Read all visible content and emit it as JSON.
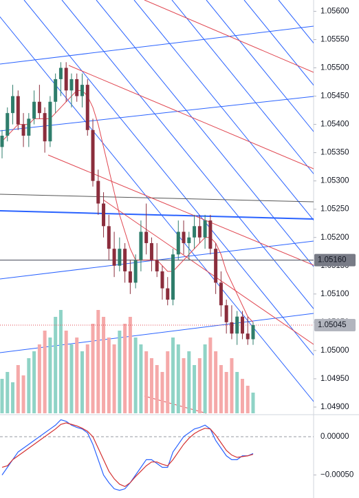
{
  "chart_data": {
    "type": "candlestick",
    "ylim": [
      1.04889,
      1.0562
    ],
    "yticks": [
      {
        "value": 1.049,
        "label": "1.04900"
      },
      {
        "value": 1.0495,
        "label": "1.04950"
      },
      {
        "value": 1.05,
        "label": "1.05000"
      },
      {
        "value": 1.0505,
        "label": "1.05050"
      },
      {
        "value": 1.051,
        "label": "1.05100"
      },
      {
        "value": 1.0515,
        "label": "1.05150"
      },
      {
        "value": 1.052,
        "label": "1.05200"
      },
      {
        "value": 1.0525,
        "label": "1.05250"
      },
      {
        "value": 1.053,
        "label": "1.05300"
      },
      {
        "value": 1.0535,
        "label": "1.05350"
      },
      {
        "value": 1.054,
        "label": "1.05400"
      },
      {
        "value": 1.0545,
        "label": "1.05450"
      },
      {
        "value": 1.055,
        "label": "1.05500"
      },
      {
        "value": 1.0555,
        "label": "1.05550"
      },
      {
        "value": 1.056,
        "label": "1.05600"
      }
    ],
    "up_color": "#2e7d6b",
    "down_color": "#8b2d3c",
    "open": [
      1.0536,
      1.0538,
      1.0542,
      1.0545,
      1.054,
      1.0538,
      1.0541,
      1.0544,
      1.0542,
      1.0537,
      1.0544,
      1.0548,
      1.055,
      1.0546,
      1.0548,
      1.0545,
      1.0547,
      1.0539,
      1.053,
      1.0526,
      1.0522,
      1.0518,
      1.0515,
      1.0518,
      1.0514,
      1.0512,
      1.0516,
      1.0521,
      1.0519,
      1.0516,
      1.0514,
      1.0511,
      1.0509,
      1.0517,
      1.0521,
      1.0519,
      1.052,
      1.0522,
      1.052,
      1.0523,
      1.0518,
      1.0512,
      1.0508,
      1.0505,
      1.0503,
      1.0506,
      1.0503,
      1.0502
    ],
    "high": [
      1.0539,
      1.0543,
      1.0547,
      1.0546,
      1.0542,
      1.0542,
      1.0546,
      1.0547,
      1.0543,
      1.0545,
      1.0549,
      1.0551,
      1.0551,
      1.0549,
      1.0549,
      1.0549,
      1.0548,
      1.0541,
      1.0532,
      1.0528,
      1.0524,
      1.0521,
      1.052,
      1.0519,
      1.0516,
      1.0517,
      1.0523,
      1.0526,
      1.052,
      1.0519,
      1.0515,
      1.0513,
      1.0518,
      1.0523,
      1.0523,
      1.0521,
      1.0524,
      1.0524,
      1.0524,
      1.0524,
      1.0519,
      1.0514,
      1.0509,
      1.0508,
      1.0507,
      1.0507,
      1.0506,
      1.0505
    ],
    "low": [
      1.0534,
      1.0537,
      1.054,
      1.0539,
      1.0536,
      1.0536,
      1.054,
      1.0541,
      1.0535,
      1.0536,
      1.0542,
      1.0545,
      1.0544,
      1.0543,
      1.0544,
      1.0543,
      1.0538,
      1.0529,
      1.0524,
      1.052,
      1.0516,
      1.0513,
      1.0514,
      1.0512,
      1.051,
      1.0511,
      1.0514,
      1.0517,
      1.0514,
      1.0513,
      1.0509,
      1.0508,
      1.0508,
      1.0516,
      1.0517,
      1.0516,
      1.0518,
      1.0519,
      1.0518,
      1.0517,
      1.051,
      1.0506,
      1.0503,
      1.0502,
      1.0501,
      1.0502,
      1.0501,
      1.0501
    ],
    "close": [
      1.0538,
      1.0542,
      1.0545,
      1.054,
      1.0538,
      1.0541,
      1.0544,
      1.0542,
      1.0537,
      1.0544,
      1.0548,
      1.055,
      1.0546,
      1.0548,
      1.0545,
      1.0547,
      1.0539,
      1.053,
      1.0526,
      1.0522,
      1.0518,
      1.0515,
      1.0518,
      1.0514,
      1.0512,
      1.0516,
      1.0521,
      1.0519,
      1.0516,
      1.0514,
      1.0511,
      1.0509,
      1.0517,
      1.0521,
      1.0519,
      1.052,
      1.0522,
      1.052,
      1.0523,
      1.0518,
      1.0512,
      1.0508,
      1.0505,
      1.0503,
      1.0506,
      1.0503,
      1.0502,
      1.05045
    ],
    "ma": {
      "color": "#e0454f",
      "values": [
        1.0537,
        1.0538,
        1.0539,
        1.054,
        1.054,
        1.054,
        1.0541,
        1.0541,
        1.0541,
        1.0541,
        1.0542,
        1.0543,
        1.0544,
        1.0545,
        1.0546,
        1.0546,
        1.0545,
        1.0543,
        1.054,
        1.0536,
        1.0532,
        1.0528,
        1.0524,
        1.0521,
        1.0518,
        1.0516,
        1.0516,
        1.0516,
        1.0516,
        1.0516,
        1.0515,
        1.0514,
        1.0514,
        1.0515,
        1.0516,
        1.0517,
        1.0518,
        1.0519,
        1.052,
        1.052,
        1.0519,
        1.0517,
        1.0514,
        1.0512,
        1.051,
        1.0508,
        1.0506,
        1.0505
      ]
    },
    "volume": {
      "ylim": [
        0,
        200
      ],
      "up_color": "#8fd3c6",
      "down_color": "#f5a9a9",
      "values": [
        50,
        60,
        45,
        70,
        55,
        80,
        90,
        100,
        120,
        110,
        140,
        150,
        120,
        100,
        110,
        90,
        100,
        130,
        150,
        140,
        110,
        100,
        120,
        130,
        140,
        110,
        100,
        90,
        80,
        70,
        60,
        90,
        110,
        100,
        80,
        90,
        70,
        80,
        100,
        110,
        90,
        70,
        60,
        80,
        60,
        50,
        40,
        30
      ]
    },
    "price_lines": [
      {
        "value": 1.0516,
        "label": "1.05160",
        "color": "#787b86"
      },
      {
        "value": 1.05045,
        "label": "1.05045",
        "color": "#e0454f"
      }
    ],
    "oscillator": {
      "ylim": [
        -0.0008,
        0.00026
      ],
      "yticks": [
        {
          "value": 0,
          "label": "0.00000"
        },
        {
          "value": -0.0005,
          "label": "−0.00050"
        }
      ],
      "series": [
        {
          "color": "#2962ff",
          "values": [
            -0.0005,
            -0.0004,
            -0.0003,
            -0.0002,
            -0.00015,
            -0.0001,
            -5e-05,
            0,
            5e-05,
            0.0001,
            0.00015,
            0.00022,
            0.0002,
            0.00015,
            0.00012,
            0.0001,
            5e-05,
            -0.0001,
            -0.0003,
            -0.0005,
            -0.0006,
            -0.00068,
            -0.0007,
            -0.00068,
            -0.0006,
            -0.0005,
            -0.0004,
            -0.0003,
            -0.0003,
            -0.00035,
            -0.0004,
            -0.0004,
            -0.0002,
            -0.0001,
            0,
            5e-05,
            0.0001,
            0.00012,
            0.00015,
            0.0001,
            -5e-05,
            -0.00015,
            -0.00025,
            -0.0003,
            -0.0003,
            -0.00025,
            -0.00025,
            -0.00022
          ]
        },
        {
          "color": "#d32f2f",
          "values": [
            -0.0004,
            -0.00038,
            -0.0003,
            -0.00025,
            -0.0002,
            -0.00015,
            -0.0001,
            -5e-05,
            0,
            5e-05,
            0.0001,
            0.00016,
            0.00018,
            0.00016,
            0.00014,
            0.00011,
            7e-05,
            0,
            -0.00015,
            -0.0003,
            -0.00045,
            -0.00055,
            -0.00062,
            -0.00065,
            -0.0006,
            -0.00052,
            -0.00045,
            -0.00038,
            -0.00033,
            -0.00033,
            -0.00036,
            -0.00038,
            -0.0003,
            -0.0002,
            -0.0001,
            -2e-05,
            4e-05,
            8e-05,
            0.00011,
            0.0001,
            2e-05,
            -8e-05,
            -0.00018,
            -0.00024,
            -0.00027,
            -0.00026,
            -0.00025,
            -0.00023
          ]
        }
      ]
    }
  }
}
